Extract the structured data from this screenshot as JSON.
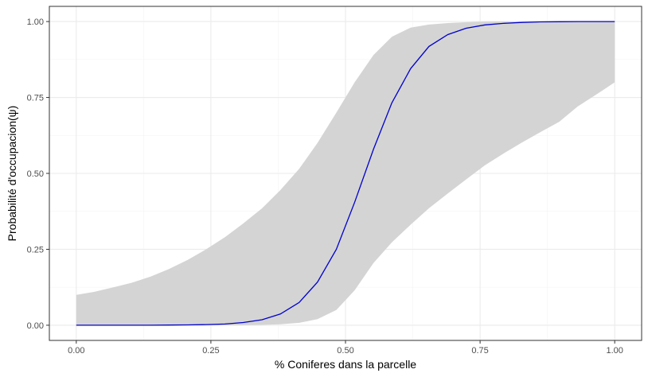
{
  "chart_data": {
    "type": "line",
    "xlabel": "% Coniferes dans la parcelle",
    "ylabel": "Probabilité d'occupacion(ψ)",
    "xlim": [
      -0.05,
      1.05
    ],
    "ylim": [
      -0.05,
      1.05
    ],
    "x_ticks": [
      "0.00",
      "0.25",
      "0.50",
      "0.75",
      "1.00"
    ],
    "y_ticks": [
      "0.00",
      "0.25",
      "0.50",
      "0.75",
      "1.00"
    ],
    "x_tick_values": [
      0,
      0.25,
      0.5,
      0.75,
      1
    ],
    "y_tick_values": [
      0,
      0.25,
      0.5,
      0.75,
      1
    ],
    "grid": true,
    "colors": {
      "line": "#0000cc",
      "ribbon": "#d4d4d4",
      "grid_major": "#ebebeb",
      "grid_minor": "#f4f4f4",
      "panel_border": "#333333"
    },
    "series": [
      {
        "x": [
          0,
          0.034,
          0.069,
          0.103,
          0.138,
          0.172,
          0.207,
          0.241,
          0.276,
          0.31,
          0.345,
          0.379,
          0.414,
          0.448,
          0.483,
          0.517,
          0.552,
          0.586,
          0.621,
          0.655,
          0.69,
          0.724,
          0.759,
          0.793,
          0.828,
          0.862,
          0.897,
          0.931,
          0.966,
          1.0
        ],
        "values": [
          0.0,
          0.0,
          0.0,
          0.0,
          0.0,
          0.0005,
          0.001,
          0.002,
          0.004,
          0.009,
          0.018,
          0.037,
          0.075,
          0.142,
          0.25,
          0.405,
          0.58,
          0.732,
          0.845,
          0.918,
          0.957,
          0.978,
          0.989,
          0.994,
          0.997,
          0.999,
          0.9995,
          1.0,
          1.0,
          1.0
        ],
        "lower": [
          0,
          0,
          0,
          0,
          0,
          0,
          0,
          0,
          0,
          0,
          0.001,
          0.003,
          0.008,
          0.02,
          0.05,
          0.115,
          0.205,
          0.273,
          0.331,
          0.385,
          0.434,
          0.48,
          0.527,
          0.565,
          0.602,
          0.636,
          0.67,
          0.72,
          0.76,
          0.8
        ],
        "upper": [
          0.1,
          0.11,
          0.125,
          0.14,
          0.16,
          0.185,
          0.215,
          0.25,
          0.29,
          0.335,
          0.385,
          0.445,
          0.515,
          0.6,
          0.7,
          0.8,
          0.89,
          0.95,
          0.98,
          0.99,
          0.995,
          0.998,
          1.0,
          1.0,
          1.0,
          1.0,
          1.0,
          1.0,
          1.0,
          1.0
        ]
      }
    ]
  }
}
